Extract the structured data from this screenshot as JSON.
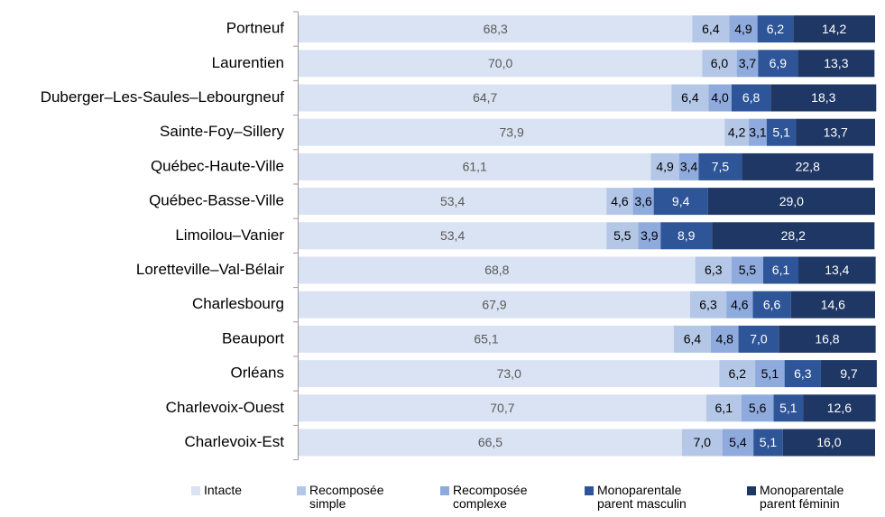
{
  "chart_data": {
    "type": "stacked_barh",
    "categories": [
      "Portneuf",
      "Laurentien",
      "Duberger–Les-Saules–Lebourgneuf",
      "Sainte-Foy–Sillery",
      "Québec-Haute-Ville",
      "Québec-Basse-Ville",
      "Limoilou–Vanier",
      "Loretteville–Val-Bélair",
      "Charlesbourg",
      "Beauport",
      "Orléans",
      "Charlevoix-Ouest",
      "Charlevoix-Est"
    ],
    "xlim": [
      0,
      100
    ],
    "legend": "bottom",
    "series": [
      {
        "name": "Intacte",
        "color": "#dae3f3",
        "values": [
          68.3,
          70.0,
          64.7,
          73.9,
          61.1,
          53.4,
          53.4,
          68.8,
          67.9,
          65.1,
          73.0,
          70.7,
          66.5
        ],
        "value_labels": [
          "68,3",
          "70,0",
          "64,7",
          "73,9",
          "61,1",
          "53,4",
          "53,4",
          "68,8",
          "67,9",
          "65,1",
          "73,0",
          "70,7",
          "66,5"
        ]
      },
      {
        "name": "Recomposée simple",
        "color": "#b4c7e7",
        "values": [
          6.4,
          6.0,
          6.4,
          4.2,
          4.9,
          4.6,
          5.5,
          6.3,
          6.3,
          6.4,
          6.2,
          6.1,
          7.0
        ],
        "value_labels": [
          "6,4",
          "6,0",
          "6,4",
          "4,2",
          "4,9",
          "4,6",
          "5,5",
          "6,3",
          "6,3",
          "6,4",
          "6,2",
          "6,1",
          "7,0"
        ]
      },
      {
        "name": "Recomposée complexe",
        "color": "#8faadc",
        "values": [
          4.9,
          3.7,
          4.0,
          3.1,
          3.4,
          3.6,
          3.9,
          5.5,
          4.6,
          4.8,
          5.1,
          5.6,
          5.4
        ],
        "value_labels": [
          "4,9",
          "3,7",
          "4,0",
          "3,1",
          "3,4",
          "3,6",
          "3,9",
          "5,5",
          "4,6",
          "4,8",
          "5,1",
          "5,6",
          "5,4"
        ]
      },
      {
        "name": "Monoparentale parent masculin",
        "color": "#2e5597",
        "values": [
          6.2,
          6.9,
          6.8,
          5.1,
          7.5,
          9.4,
          8.9,
          6.1,
          6.6,
          7.0,
          6.3,
          5.1,
          5.1
        ],
        "value_labels": [
          "6,2",
          "6,9",
          "6,8",
          "5,1",
          "7,5",
          "9,4",
          "8,9",
          "6,1",
          "6,6",
          "7,0",
          "6,3",
          "5,1",
          "5,1"
        ]
      },
      {
        "name": "Monoparentale parent féminin",
        "color": "#1f3765",
        "values": [
          14.2,
          13.3,
          18.3,
          13.7,
          22.8,
          29.0,
          28.2,
          13.4,
          14.6,
          16.8,
          9.7,
          12.6,
          16.0
        ],
        "value_labels": [
          "14,2",
          "13,3",
          "18,3",
          "13,7",
          "22,8",
          "29,0",
          "28,2",
          "13,4",
          "14,6",
          "16,8",
          "9,7",
          "12,6",
          "16,0"
        ]
      }
    ]
  }
}
